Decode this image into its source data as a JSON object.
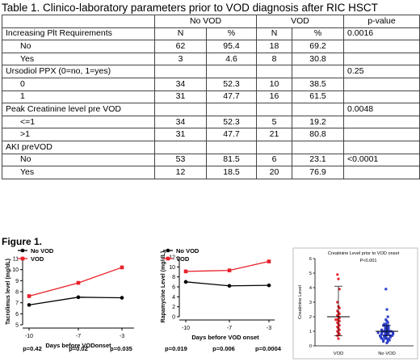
{
  "table": {
    "title": "Table 1.  Clinico-laboratory parameters prior to VOD diagnosis after RIC HSCT",
    "groups": [
      "No VOD",
      "VOD",
      "p-value"
    ],
    "rows": [
      {
        "label": "Increasing Plt Requirements",
        "cells": [
          "N",
          "%",
          "N",
          "%",
          "0.0016"
        ],
        "header": true
      },
      {
        "label": "No",
        "cells": [
          "62",
          "95.4",
          "18",
          "69.2",
          ""
        ],
        "sub": true
      },
      {
        "label": "Yes",
        "cells": [
          "3",
          "4.6",
          "8",
          "30.8",
          ""
        ],
        "sub": true
      },
      {
        "label": "Ursodiol PPX (0=no, 1=yes)",
        "cells": [
          "",
          "",
          "",
          "",
          "0.25"
        ],
        "header": true
      },
      {
        "label": "0",
        "cells": [
          "34",
          "52.3",
          "10",
          "38.5",
          ""
        ],
        "sub": true
      },
      {
        "label": "1",
        "cells": [
          "31",
          "47.7",
          "16",
          "61.5",
          ""
        ],
        "sub": true
      },
      {
        "label": "Peak Creatinine level pre VOD",
        "cells": [
          "",
          "",
          "",
          "",
          "0.0048"
        ],
        "header": true
      },
      {
        "label": "<=1",
        "cells": [
          "34",
          "52.3",
          "5",
          "19.2",
          ""
        ],
        "sub": true
      },
      {
        "label": ">1",
        "cells": [
          "31",
          "47.7",
          "21",
          "80.8",
          ""
        ],
        "sub": true
      },
      {
        "label": "AKI preVOD",
        "cells": [
          "",
          "",
          "",
          "",
          ""
        ],
        "header": true
      },
      {
        "label": "No",
        "cells": [
          "53",
          "81.5",
          "6",
          "23.1",
          "<0.0001"
        ],
        "sub": true
      },
      {
        "label": "Yes",
        "cells": [
          "12",
          "18.5",
          "20",
          "76.9",
          ""
        ],
        "sub": true
      }
    ]
  },
  "figure_title": "Figure 1.",
  "colors": {
    "no_vod": "#000000",
    "vod": "#e8202a",
    "scatter_vod": "#e8202a",
    "scatter_novod": "#2b3cc8"
  },
  "chart_data": [
    {
      "type": "line",
      "ylabel": "Tacrolimus level  (mg/dL)",
      "xlabel": "Days before VODonset",
      "x": [
        "-10",
        "-7",
        "-3"
      ],
      "ylim": [
        5,
        11
      ],
      "yticks": [
        "5",
        "6",
        "7",
        "8",
        "9",
        "10",
        "11"
      ],
      "series": [
        {
          "name": "No VOD",
          "values": [
            6.8,
            7.5,
            7.45
          ]
        },
        {
          "name": "VOD",
          "values": [
            7.6,
            8.8,
            10.2
          ]
        }
      ],
      "pvalues": [
        "p=0.42",
        "p=0.02",
        "p=0.035"
      ]
    },
    {
      "type": "line",
      "ylabel": "Rapamycine Level  (mg/dL)",
      "xlabel": "Days before VOD onset",
      "x": [
        "-10",
        "-7",
        "-3"
      ],
      "ylim": [
        0,
        12
      ],
      "yticks": [
        "0",
        "2",
        "4",
        "6",
        "8",
        "10",
        "12"
      ],
      "series": [
        {
          "name": "No VOD",
          "values": [
            7.0,
            6.2,
            6.3
          ]
        },
        {
          "name": "VOD",
          "values": [
            9.1,
            9.3,
            11.1
          ]
        }
      ],
      "pvalues": [
        "p=0.019",
        "p=0.006",
        "p=0.0004"
      ]
    },
    {
      "type": "scatter",
      "title": "Creatinine Level prior to VOD onset",
      "subtitle": "P<0.001",
      "ylabel": "Creatinine Level",
      "categories": [
        "VOD",
        "No VOD"
      ],
      "ylim": [
        0,
        6
      ],
      "yticks": [
        "0",
        "1",
        "2",
        "3",
        "4",
        "5",
        "6"
      ],
      "groups": [
        {
          "name": "VOD",
          "mean": 2.0,
          "sd_low": 0.7,
          "sd_high": 4.1,
          "values": [
            4.9,
            4.6,
            3.9,
            3.0,
            2.7,
            2.6,
            2.4,
            2.3,
            2.2,
            2.1,
            2.0,
            1.9,
            1.8,
            1.8,
            1.7,
            1.6,
            1.5,
            1.4,
            1.3,
            1.2,
            1.1,
            1.0,
            0.9,
            0.8,
            0.7,
            0.5
          ]
        },
        {
          "name": "No VOD",
          "mean": 1.0,
          "sd_low": 0.7,
          "sd_high": 1.4,
          "values": [
            3.9,
            2.5,
            2.0,
            1.8,
            1.7,
            1.6,
            1.5,
            1.5,
            1.4,
            1.4,
            1.3,
            1.3,
            1.3,
            1.2,
            1.2,
            1.2,
            1.1,
            1.1,
            1.1,
            1.1,
            1.0,
            1.0,
            1.0,
            1.0,
            1.0,
            0.9,
            0.9,
            0.9,
            0.9,
            0.9,
            0.9,
            0.8,
            0.8,
            0.8,
            0.8,
            0.8,
            0.7,
            0.7,
            0.7,
            0.7,
            0.7,
            0.7,
            0.6,
            0.6,
            0.6,
            0.6,
            0.5,
            0.5,
            0.5,
            0.5,
            0.4,
            0.4,
            0.4,
            0.3,
            0.3,
            0.2
          ]
        }
      ]
    }
  ]
}
